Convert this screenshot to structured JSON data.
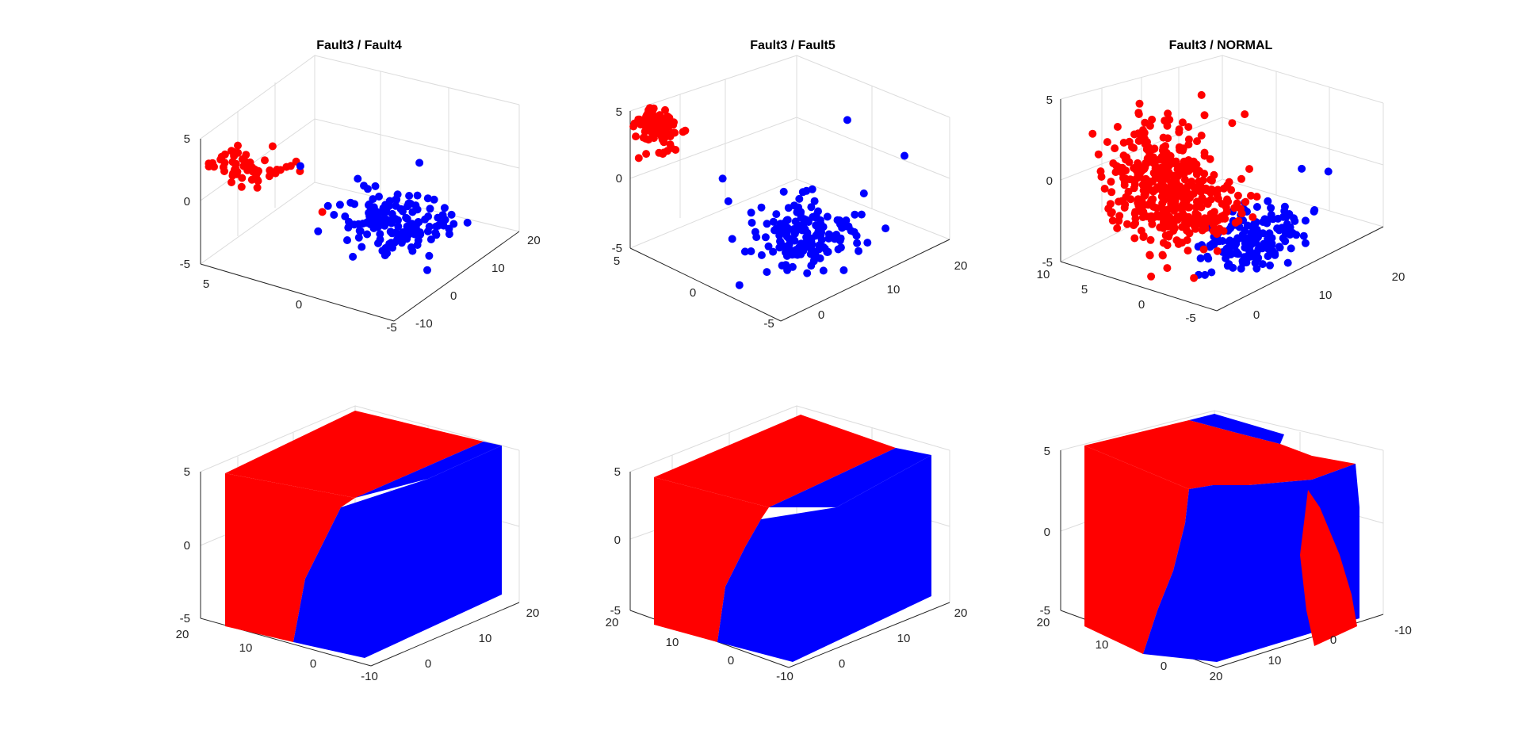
{
  "chart_data": [
    {
      "type": "scatter",
      "title": "Fault3 / Fault4",
      "colors": {
        "red": "#ff0000",
        "blue": "#0000ff"
      },
      "xlim": [
        -10,
        20
      ],
      "ylim": [
        -5,
        5
      ],
      "zlim": [
        -5,
        5
      ],
      "x_ticks": [
        -10,
        0,
        10,
        20
      ],
      "y_ticks": [
        -5,
        0,
        5
      ],
      "z_ticks": [
        -5,
        0,
        5
      ],
      "series": [
        {
          "color": "red",
          "clusters": [
            {
              "center": [
                -6,
                3.6,
                2.5
              ],
              "spread": [
                1.5,
                1.0,
                0.6
              ],
              "count": 55
            }
          ],
          "outliers": [
            [
              -8,
              5,
              2.3
            ],
            [
              -2,
              3,
              3.4
            ],
            [
              -1,
              2,
              2.4
            ],
            [
              -4,
              0,
              0
            ]
          ]
        },
        {
          "color": "blue",
          "clusters": [
            {
              "center": [
                6,
                -1.5,
                -2.5
              ],
              "spread": [
                3.5,
                1.4,
                0.8
              ],
              "count": 150
            }
          ],
          "outliers": [
            [
              0,
              2,
              1.8
            ],
            [
              10,
              -2,
              1.5
            ]
          ]
        }
      ]
    },
    {
      "type": "scatter",
      "title": "Fault3 / Fault5",
      "colors": {
        "red": "#ff0000",
        "blue": "#0000ff"
      },
      "xlim": [
        -5,
        20
      ],
      "ylim": [
        -5,
        5
      ],
      "zlim": [
        -5,
        5
      ],
      "x_ticks": [
        0,
        10,
        20
      ],
      "y_ticks": [
        -5,
        0,
        5
      ],
      "z_ticks": [
        -5,
        0,
        5
      ],
      "series": [
        {
          "color": "red",
          "clusters": [
            {
              "center": [
                -3,
                4.2,
                3.8
              ],
              "spread": [
                0.8,
                0.6,
                0.7
              ],
              "count": 90
            }
          ],
          "outliers": []
        },
        {
          "color": "blue",
          "clusters": [
            {
              "center": [
                7,
                -1.5,
                -3.5
              ],
              "spread": [
                3.2,
                1.3,
                0.7
              ],
              "count": 160
            }
          ],
          "outliers": [
            [
              2,
              2,
              0
            ],
            [
              16,
              0,
              2
            ],
            [
              20,
              -2,
              -0.5
            ]
          ]
        }
      ]
    },
    {
      "type": "scatter",
      "title": "Fault3 / NORMAL",
      "colors": {
        "red": "#ff0000",
        "blue": "#0000ff"
      },
      "xlim": [
        -5,
        20
      ],
      "ylim": [
        -5,
        10
      ],
      "zlim": [
        -5,
        5
      ],
      "x_ticks": [
        0,
        10,
        20
      ],
      "y_ticks": [
        -5,
        0,
        5,
        10
      ],
      "z_ticks": [
        -5,
        0,
        5
      ],
      "series": [
        {
          "color": "blue",
          "clusters": [
            {
              "center": [
                6,
                -1.5,
                -3.5
              ],
              "spread": [
                3.5,
                1.5,
                0.7
              ],
              "count": 160
            }
          ],
          "outliers": [
            [
              14,
              -1,
              -1
            ],
            [
              18,
              -1,
              -2
            ]
          ]
        },
        {
          "color": "red",
          "clusters": [
            {
              "center": [
                -1.5,
                2.5,
                0.3
              ],
              "spread": [
                2.2,
                2.2,
                1.8
              ],
              "count": 380
            },
            {
              "center": [
                2,
                0,
                -1.5
              ],
              "spread": [
                2.5,
                1.2,
                0.6
              ],
              "count": 60
            }
          ],
          "outliers": [
            [
              -4,
              7,
              2
            ],
            [
              2,
              -2,
              4.5
            ]
          ]
        }
      ]
    },
    {
      "type": "scatter",
      "colors": {
        "red": "#ff0000",
        "blue": "#0000ff"
      },
      "x_ticks": [
        -10,
        0,
        10,
        20
      ],
      "y_ticks": [
        20,
        10,
        0
      ],
      "z_ticks": [
        -5,
        0,
        5
      ]
    },
    {
      "type": "scatter",
      "colors": {
        "red": "#ff0000",
        "blue": "#0000ff"
      },
      "x_ticks": [
        -10,
        0,
        10,
        20
      ],
      "y_ticks": [
        20,
        10,
        0
      ],
      "z_ticks": [
        -5,
        0,
        5
      ]
    },
    {
      "type": "scatter",
      "colors": {
        "red": "#ff0000",
        "blue": "#0000ff"
      },
      "x_ticks": [
        -10,
        0,
        10,
        20
      ],
      "y_ticks": [
        20,
        10,
        0
      ],
      "z_ticks": [
        -5,
        0,
        5
      ]
    }
  ]
}
